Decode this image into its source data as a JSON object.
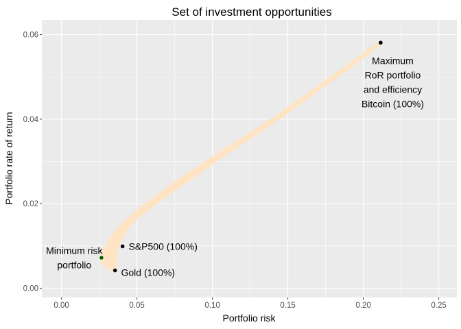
{
  "chart_data": {
    "type": "scatter",
    "title": "Set of investment opportunities",
    "xlabel": "Portfolio risk",
    "ylabel": "Portfolio rate of return",
    "xlim": [
      -0.013,
      0.262
    ],
    "ylim": [
      -0.0022,
      0.0635
    ],
    "xticks": [
      0.0,
      0.05,
      0.1,
      0.15,
      0.2,
      0.25
    ],
    "xtick_labels": [
      "0.00",
      "0.05",
      "0.10",
      "0.15",
      "0.20",
      "0.25"
    ],
    "yticks": [
      0.0,
      0.02,
      0.04,
      0.06
    ],
    "ytick_labels": [
      "0.00",
      "0.02",
      "0.04",
      "0.06"
    ],
    "grid": true,
    "background": "#ebebeb",
    "grid_color": "#ffffff",
    "cloud_color": "#ffe4c4",
    "frontier_upper": [
      [
        0.0265,
        0.0072
      ],
      [
        0.0275,
        0.0082
      ],
      [
        0.029,
        0.0093
      ],
      [
        0.032,
        0.0112
      ],
      [
        0.036,
        0.0132
      ],
      [
        0.042,
        0.0155
      ],
      [
        0.05,
        0.018
      ],
      [
        0.06,
        0.0208
      ],
      [
        0.075,
        0.0248
      ],
      [
        0.09,
        0.0283
      ],
      [
        0.11,
        0.033
      ],
      [
        0.13,
        0.0376
      ],
      [
        0.15,
        0.0424
      ],
      [
        0.17,
        0.0475
      ],
      [
        0.19,
        0.0526
      ],
      [
        0.2115,
        0.0582
      ]
    ],
    "frontier_lower": [
      [
        0.2115,
        0.058
      ],
      [
        0.19,
        0.0522
      ],
      [
        0.17,
        0.047
      ],
      [
        0.15,
        0.0418
      ],
      [
        0.13,
        0.0369
      ],
      [
        0.11,
        0.0322
      ],
      [
        0.09,
        0.0272
      ],
      [
        0.075,
        0.0235
      ],
      [
        0.06,
        0.0196
      ],
      [
        0.05,
        0.0168
      ],
      [
        0.045,
        0.015
      ],
      [
        0.041,
        0.013
      ],
      [
        0.038,
        0.0108
      ],
      [
        0.036,
        0.0085
      ],
      [
        0.0355,
        0.006
      ],
      [
        0.0355,
        0.0042
      ],
      [
        0.0345,
        0.0044
      ],
      [
        0.031,
        0.005
      ],
      [
        0.0285,
        0.0057
      ],
      [
        0.027,
        0.0064
      ]
    ],
    "points": [
      {
        "label": "S&P500 (100%)",
        "x": 0.0405,
        "y": 0.0099,
        "color": "#000000"
      },
      {
        "label": "Gold (100%)",
        "x": 0.0355,
        "y": 0.0042,
        "color": "#000000"
      },
      {
        "label": "Minimum risk portfolio",
        "x": 0.0265,
        "y": 0.0072,
        "color": "#006400"
      },
      {
        "label": "Bitcoin (100%)",
        "x": 0.2115,
        "y": 0.0581,
        "color": "#000000"
      }
    ],
    "annotations": [
      {
        "lines": [
          "S&P500 (100%)"
        ],
        "x": 0.0445,
        "y": 0.0099,
        "anchor": "start"
      },
      {
        "lines": [
          "Gold (100%)"
        ],
        "x": 0.0395,
        "y": 0.0037,
        "anchor": "start"
      },
      {
        "lines": [
          "Minimum risk",
          "portfolio"
        ],
        "x": 0.0085,
        "y": 0.0072,
        "anchor": "middle"
      },
      {
        "lines": [
          "Maximum",
          "RoR portfolio",
          "and  efficiency",
          "Bitcoin (100%)"
        ],
        "x": 0.2195,
        "y": 0.0487,
        "anchor": "middle"
      }
    ]
  }
}
